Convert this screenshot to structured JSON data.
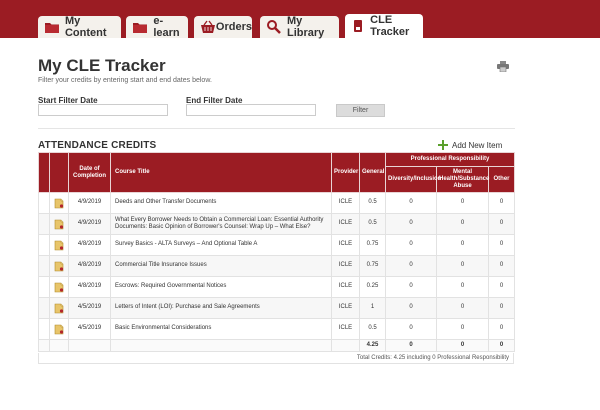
{
  "tabs": [
    {
      "label": "My Content",
      "icon": "folder-icon"
    },
    {
      "label": "e-learn",
      "icon": "folder-icon"
    },
    {
      "label": "Orders",
      "icon": "basket-icon"
    },
    {
      "label": "My Library",
      "icon": "magnifier-icon"
    },
    {
      "label": "CLE Tracker",
      "icon": "lock-icon",
      "active": true
    }
  ],
  "colors": {
    "brand": "#9b1c23",
    "accent_green": "#5aa02c"
  },
  "page": {
    "title": "My CLE Tracker",
    "subtitle": "Filter your credits by entering start and end dates below.",
    "print_icon": "printer-icon"
  },
  "filter": {
    "start_label": "Start Filter Date",
    "start_value": "",
    "end_label": "End Filter Date",
    "end_value": "",
    "button_label": "Filter"
  },
  "section": {
    "title": "ATTENDANCE CREDITS",
    "add_new_label": "Add New Item"
  },
  "table": {
    "headers": {
      "date": "Date of Completion",
      "course": "Course Title",
      "provider": "Provider",
      "general": "General",
      "professional": "Professional Responsibility",
      "diversity": "Diversity/Inclusion",
      "mental": "Mental Health/Substance Abuse",
      "other": "Other"
    },
    "rows": [
      {
        "date": "4/9/2019",
        "title": "Deeds and Other Transfer Documents",
        "provider": "ICLE",
        "general": "0.5",
        "diversity": "0",
        "mental": "0",
        "other": "0"
      },
      {
        "date": "4/9/2019",
        "title": "What Every Borrower Needs to Obtain a Commercial Loan: Essential Authority Documents: Basic Opinion of Borrower's Counsel: Wrap Up – What Else?",
        "provider": "ICLE",
        "general": "0.5",
        "diversity": "0",
        "mental": "0",
        "other": "0"
      },
      {
        "date": "4/8/2019",
        "title": "Survey Basics - ALTA Surveys – And Optional Table A",
        "provider": "ICLE",
        "general": "0.75",
        "diversity": "0",
        "mental": "0",
        "other": "0"
      },
      {
        "date": "4/8/2019",
        "title": "Commercial Title Insurance Issues",
        "provider": "ICLE",
        "general": "0.75",
        "diversity": "0",
        "mental": "0",
        "other": "0"
      },
      {
        "date": "4/8/2019",
        "title": "Escrows: Required Governmental Notices",
        "provider": "ICLE",
        "general": "0.25",
        "diversity": "0",
        "mental": "0",
        "other": "0"
      },
      {
        "date": "4/5/2019",
        "title": "Letters of Intent (LOI): Purchase and Sale Agreements",
        "provider": "ICLE",
        "general": "1",
        "diversity": "0",
        "mental": "0",
        "other": "0"
      },
      {
        "date": "4/5/2019",
        "title": "Basic Environmental Considerations",
        "provider": "ICLE",
        "general": "0.5",
        "diversity": "0",
        "mental": "0",
        "other": "0"
      }
    ],
    "totals": {
      "general": "4.25",
      "diversity": "0",
      "mental": "0",
      "other": "0"
    },
    "total_line": "Total Credits: 4.25 including 0 Professional Responsibility"
  }
}
